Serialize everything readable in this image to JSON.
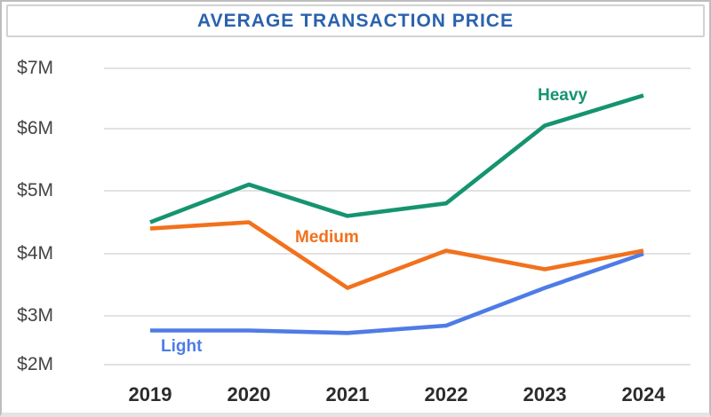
{
  "header": {
    "title": "AVERAGE TRANSACTION PRICE"
  },
  "colors": {
    "title": "#2a62ae",
    "gridline": "#d9d9d9",
    "y_axis_text": "#444444",
    "x_axis_text": "#2c2c2c",
    "heavy": "#15946f",
    "medium": "#f2711c",
    "light": "#4e7ce6"
  },
  "chart_data": {
    "type": "line",
    "title": "AVERAGE TRANSACTION PRICE",
    "x": [
      "2019",
      "2020",
      "2021",
      "2022",
      "2023",
      "2024"
    ],
    "series": [
      {
        "name": "Heavy",
        "color": "#15946f",
        "values": [
          4.5,
          5.1,
          4.6,
          4.8,
          6.05,
          6.55
        ]
      },
      {
        "name": "Medium",
        "color": "#f2711c",
        "values": [
          4.4,
          4.5,
          3.45,
          4.05,
          3.75,
          4.05
        ]
      },
      {
        "name": "Light",
        "color": "#4e7ce6",
        "values": [
          2.7,
          2.7,
          2.65,
          2.8,
          3.45,
          4.0
        ]
      }
    ],
    "y_ticks": [
      "$7M",
      "$6M",
      "$5M",
      "$4M",
      "$3M",
      "$2M"
    ],
    "y_tick_values": [
      7,
      6,
      5,
      4,
      3,
      2
    ],
    "ylim": [
      2,
      7
    ],
    "xlabel": "",
    "ylabel": "",
    "grid": true,
    "legend": "inline-labels"
  }
}
